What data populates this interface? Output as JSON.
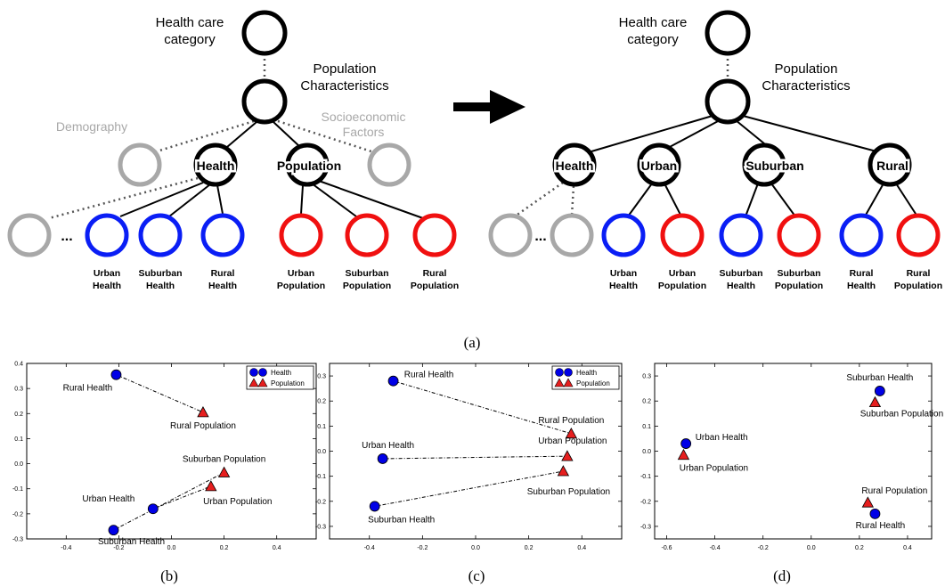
{
  "colors": {
    "blue": "#0a1ef5",
    "red": "#f01010",
    "gray": "#a8a8a8",
    "black": "#000000",
    "marker_blue": "#0000e6",
    "marker_red": "#e61e1e"
  },
  "diagram_left": {
    "root": "Health care\ncategory",
    "pop_char": "Population\nCharacteristics",
    "demography": "Demography",
    "socio": "Socioeconomic\nFactors",
    "health": "Health",
    "population": "Population",
    "ellipsis": "...",
    "leaves": [
      {
        "label": "Urban\nHealth",
        "color": "blue"
      },
      {
        "label": "Suburban\nHealth",
        "color": "blue"
      },
      {
        "label": "Rural\nHealth",
        "color": "blue"
      },
      {
        "label": "Urban\nPopulation",
        "color": "red"
      },
      {
        "label": "Suburban\nPopulation",
        "color": "red"
      },
      {
        "label": "Rural\nPopulation",
        "color": "red"
      }
    ]
  },
  "diagram_right": {
    "root": "Health care\ncategory",
    "pop_char": "Population\nCharacteristics",
    "health": "Health",
    "urban": "Urban",
    "suburban": "Suburban",
    "rural": "Rural",
    "ellipsis": "...",
    "leaves": [
      {
        "label": "Urban\nHealth",
        "color": "blue"
      },
      {
        "label": "Urban\nPopulation",
        "color": "red"
      },
      {
        "label": "Suburban\nHealth",
        "color": "blue"
      },
      {
        "label": "Suburban\nPopulation",
        "color": "red"
      },
      {
        "label": "Rural\nHealth",
        "color": "blue"
      },
      {
        "label": "Rural\nPopulation",
        "color": "red"
      }
    ]
  },
  "captions": {
    "a": "(a)",
    "b": "(b)",
    "c": "(c)",
    "d": "(d)"
  },
  "chart_data": [
    {
      "type": "scatter",
      "xlim": [
        -0.55,
        0.55
      ],
      "ylim": [
        -0.3,
        0.4
      ],
      "xticks": [
        -0.4,
        -0.2,
        0.0,
        0.2,
        0.4
      ],
      "yticks": [
        -0.3,
        -0.2,
        -0.1,
        0.0,
        0.1,
        0.2,
        0.3,
        0.4
      ],
      "legend": {
        "placement": "top-right",
        "entries": [
          "Health",
          "Population"
        ]
      },
      "points": [
        {
          "label": "Rural Health",
          "series": "Health",
          "x": -0.21,
          "y": 0.355
        },
        {
          "label": "Rural Population",
          "series": "Population",
          "x": 0.12,
          "y": 0.205
        },
        {
          "label": "Suburban Population",
          "series": "Population",
          "x": 0.2,
          "y": -0.035
        },
        {
          "label": "Urban Population",
          "series": "Population",
          "x": 0.15,
          "y": -0.09
        },
        {
          "label": "Urban Health",
          "series": "Health",
          "x": -0.07,
          "y": -0.18
        },
        {
          "label": "Suburban Health",
          "series": "Health",
          "x": -0.22,
          "y": -0.265
        }
      ],
      "links": [
        [
          "Rural Health",
          "Rural Population"
        ],
        [
          "Suburban Health",
          "Suburban Population"
        ],
        [
          "Urban Health",
          "Urban Population"
        ]
      ]
    },
    {
      "type": "scatter",
      "xlim": [
        -0.55,
        0.55
      ],
      "ylim": [
        -0.35,
        0.35
      ],
      "xticks": [
        -0.4,
        -0.2,
        0.0,
        0.2,
        0.4
      ],
      "yticks": [
        -0.3,
        -0.2,
        -0.1,
        0.0,
        0.1,
        0.2,
        0.3
      ],
      "legend": {
        "placement": "top-right",
        "entries": [
          "Health",
          "Population"
        ]
      },
      "points": [
        {
          "label": "Rural Health",
          "series": "Health",
          "x": -0.31,
          "y": 0.28
        },
        {
          "label": "Rural Population",
          "series": "Population",
          "x": 0.36,
          "y": 0.07
        },
        {
          "label": "Urban Health",
          "series": "Health",
          "x": -0.35,
          "y": -0.03
        },
        {
          "label": "Urban Population",
          "series": "Population",
          "x": 0.345,
          "y": -0.02
        },
        {
          "label": "Suburban Population",
          "series": "Population",
          "x": 0.33,
          "y": -0.08
        },
        {
          "label": "Suburban Health",
          "series": "Health",
          "x": -0.38,
          "y": -0.22
        }
      ],
      "links": [
        [
          "Rural Health",
          "Rural Population"
        ],
        [
          "Urban Health",
          "Urban Population"
        ],
        [
          "Suburban Health",
          "Suburban Population"
        ]
      ]
    },
    {
      "type": "scatter",
      "xlim": [
        -0.65,
        0.5
      ],
      "ylim": [
        -0.35,
        0.35
      ],
      "xticks": [
        -0.6,
        -0.4,
        -0.2,
        0.0,
        0.2,
        0.4
      ],
      "yticks": [
        -0.3,
        -0.2,
        -0.1,
        0.0,
        0.1,
        0.2,
        0.3
      ],
      "points": [
        {
          "label": "Suburban Health",
          "series": "Health",
          "x": 0.285,
          "y": 0.24
        },
        {
          "label": "Suburban Population",
          "series": "Population",
          "x": 0.265,
          "y": 0.195
        },
        {
          "label": "Urban Health",
          "series": "Health",
          "x": -0.52,
          "y": 0.03
        },
        {
          "label": "Urban Population",
          "series": "Population",
          "x": -0.53,
          "y": -0.015
        },
        {
          "label": "Rural Population",
          "series": "Population",
          "x": 0.235,
          "y": -0.205
        },
        {
          "label": "Rural Health",
          "series": "Health",
          "x": 0.265,
          "y": -0.25
        }
      ],
      "links": []
    }
  ]
}
